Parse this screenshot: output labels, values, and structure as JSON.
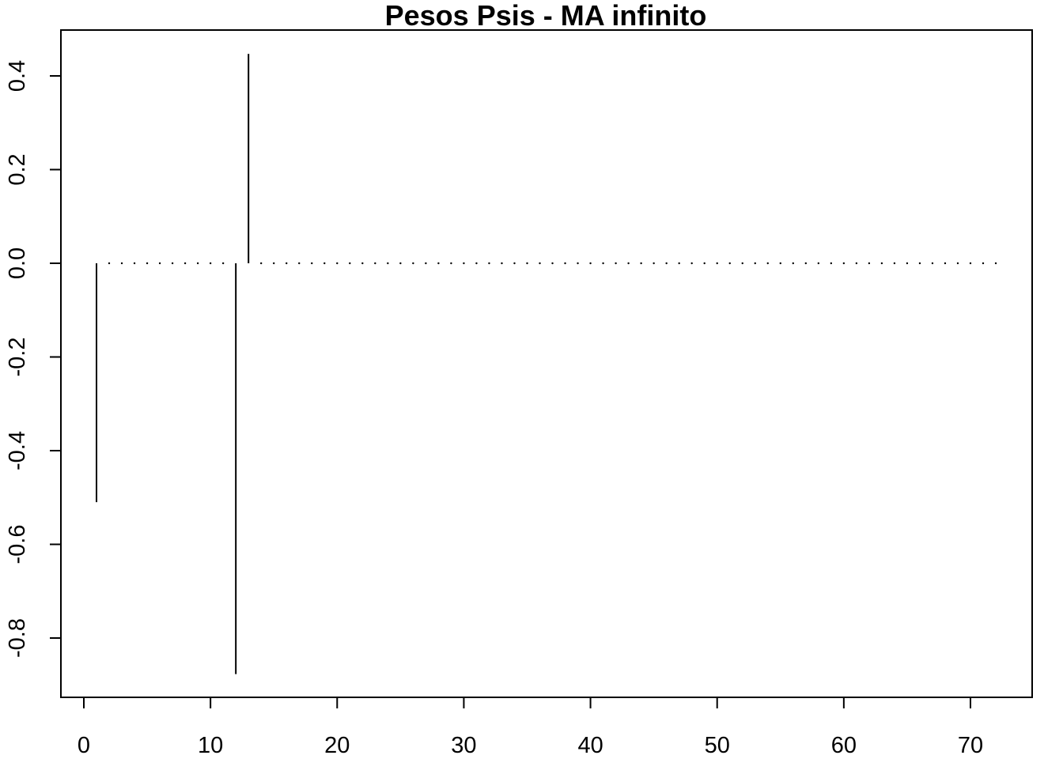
{
  "chart_data": {
    "type": "line",
    "title": "Pesos Psis - MA infinito",
    "xlabel": "",
    "ylabel": "",
    "xlim": [
      0,
      72
    ],
    "ylim": [
      -0.9,
      0.5
    ],
    "xticks": [
      0,
      10,
      20,
      30,
      40,
      50,
      60,
      70
    ],
    "xtick_labels": [
      "0",
      "10",
      "20",
      "30",
      "40",
      "50",
      "60",
      "70"
    ],
    "yticks": [
      -0.8,
      -0.6,
      -0.4,
      -0.2,
      0.0,
      0.2,
      0.4
    ],
    "ytick_labels": [
      "-0.8",
      "-0.6",
      "-0.4",
      "-0.2",
      "0.0",
      "0.2",
      "0.4"
    ],
    "grid": false,
    "legend": "none",
    "line_style": "vertical spikes from zero",
    "color": "#000000",
    "x": [
      1,
      2,
      3,
      4,
      5,
      6,
      7,
      8,
      9,
      10,
      11,
      12,
      13,
      14,
      15,
      16,
      17,
      18,
      19,
      20,
      21,
      22,
      23,
      24,
      25,
      26,
      27,
      28,
      29,
      30,
      31,
      32,
      33,
      34,
      35,
      36,
      37,
      38,
      39,
      40,
      41,
      42,
      43,
      44,
      45,
      46,
      47,
      48,
      49,
      50,
      51,
      52,
      53,
      54,
      55,
      56,
      57,
      58,
      59,
      60,
      61,
      62,
      63,
      64,
      65,
      66,
      67,
      68,
      69,
      70,
      71,
      72
    ],
    "values": [
      -0.51,
      0,
      0,
      0,
      0,
      0,
      0,
      0,
      0,
      0,
      0,
      -0.877,
      0.447,
      0,
      0,
      0,
      0,
      0,
      0,
      0,
      0,
      0,
      0,
      0,
      0,
      0,
      0,
      0,
      0,
      0,
      0,
      0,
      0,
      0,
      0,
      0,
      0,
      0,
      0,
      0,
      0,
      0,
      0,
      0,
      0,
      0,
      0,
      0,
      0,
      0,
      0,
      0,
      0,
      0,
      0,
      0,
      0,
      0,
      0,
      0,
      0,
      0,
      0,
      0,
      0,
      0,
      0,
      0,
      0,
      0,
      0,
      0
    ]
  }
}
